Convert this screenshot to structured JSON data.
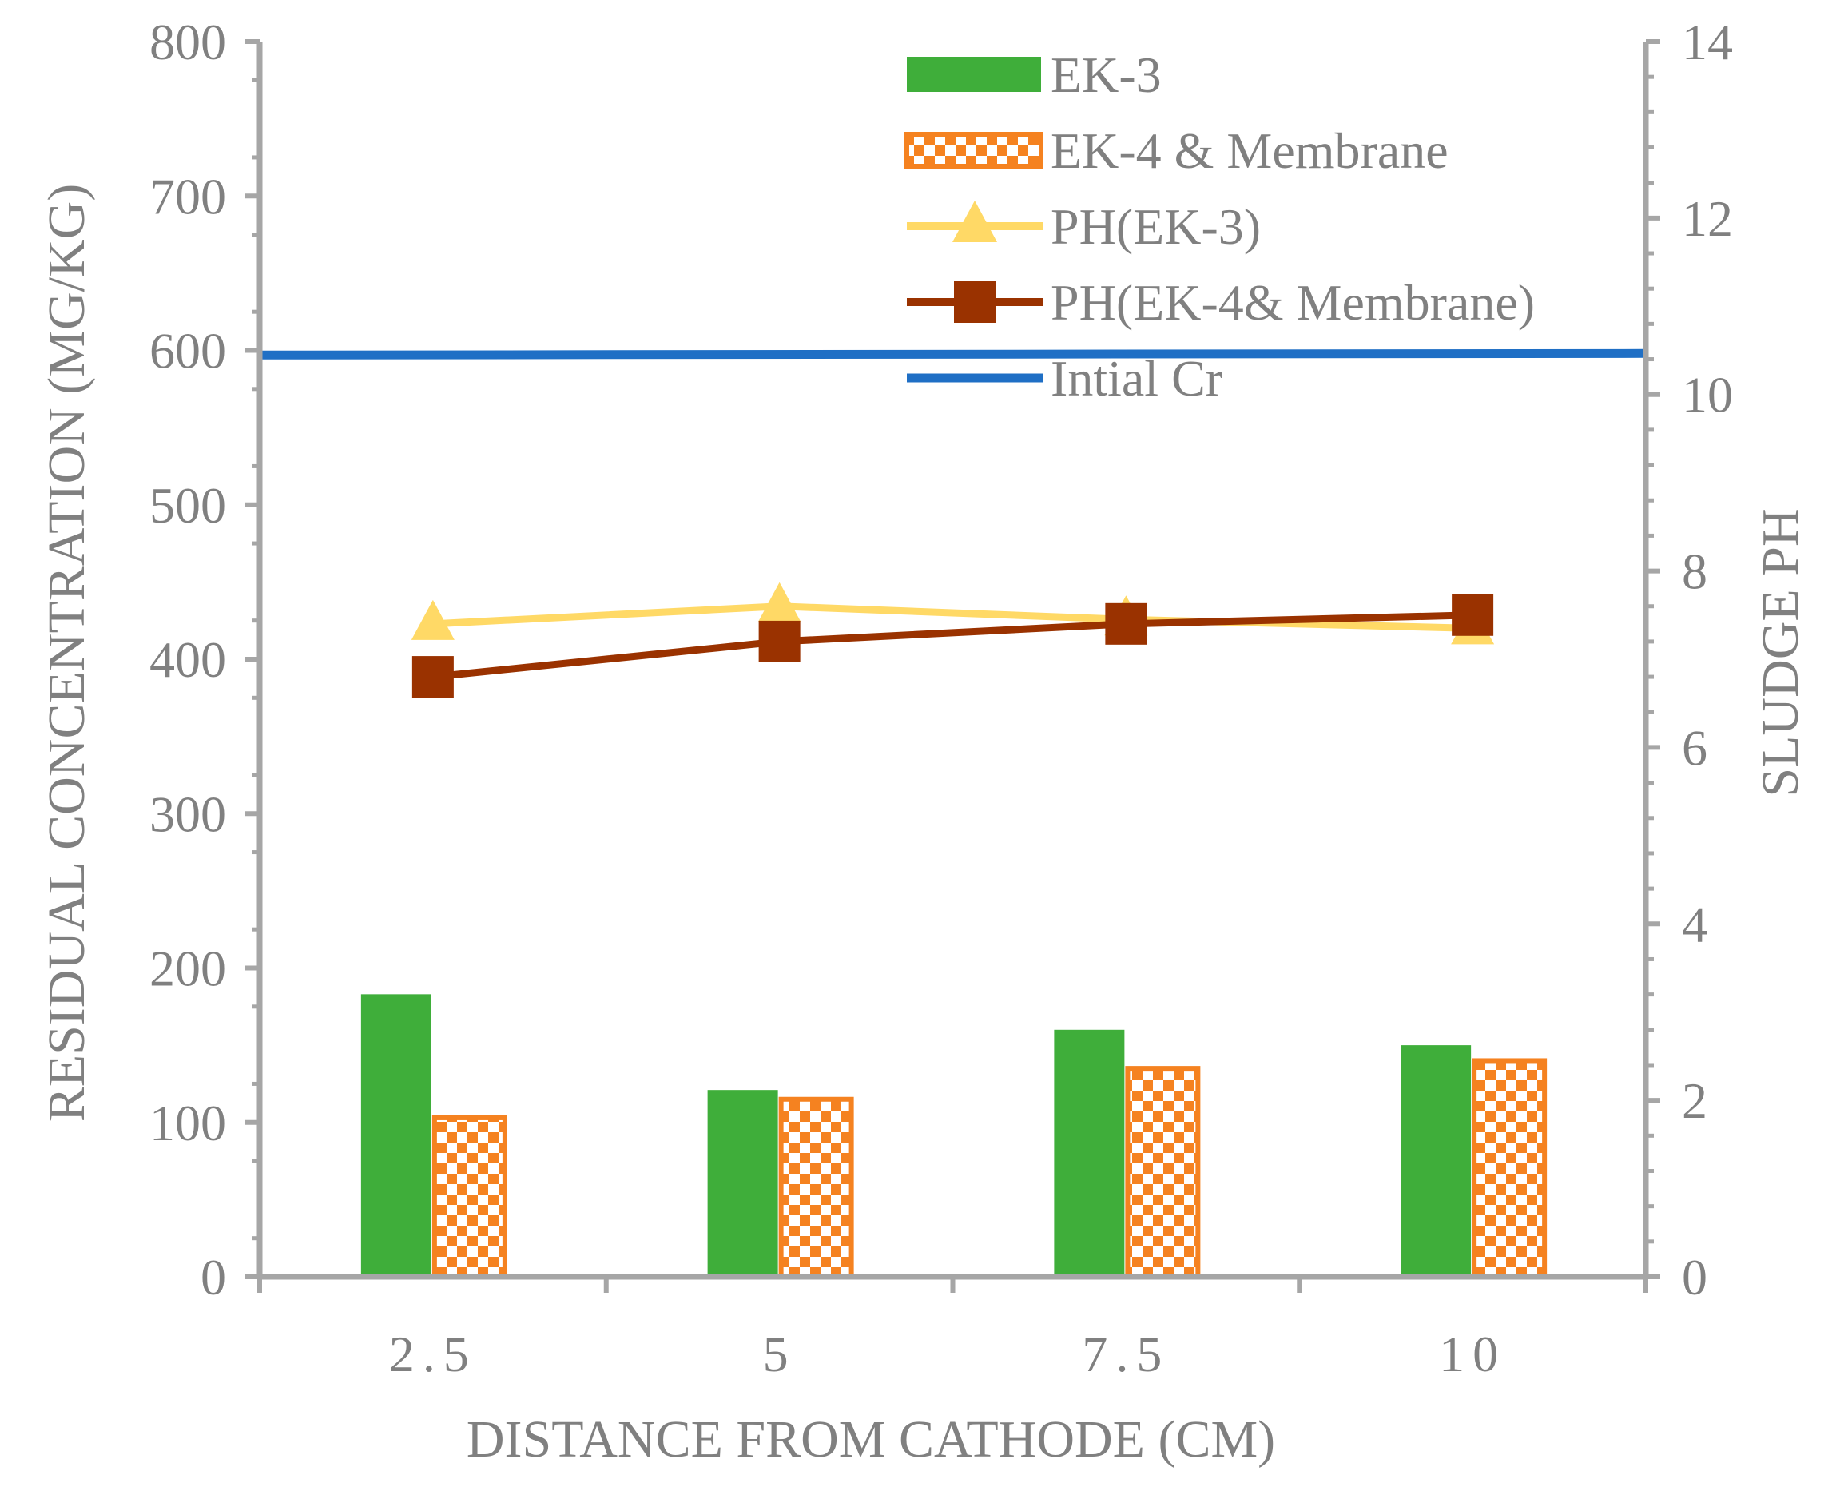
{
  "chart_data": {
    "type": "bar",
    "categories": [
      "2.5",
      "5",
      "7.5",
      "10"
    ],
    "series": [
      {
        "name": "EK-3",
        "kind": "bar",
        "axis": "left",
        "color": "#3fae3a",
        "values": [
          183,
          121,
          160,
          150
        ]
      },
      {
        "name": "EK-4 & Membrane",
        "kind": "bar",
        "axis": "left",
        "pattern": "checker",
        "color": "#f58220",
        "values": [
          103,
          115,
          135,
          140
        ]
      },
      {
        "name": "PH(EK-3)",
        "kind": "line",
        "marker": "triangle",
        "axis": "right",
        "color": "#ffd966",
        "values": [
          7.4,
          7.6,
          7.45,
          7.35
        ]
      },
      {
        "name": "PH(EK-4& Membrane)",
        "kind": "line",
        "marker": "square",
        "axis": "right",
        "color": "#9a3200",
        "values": [
          6.8,
          7.2,
          7.4,
          7.5
        ]
      },
      {
        "name": "Intial Cr",
        "kind": "hline",
        "axis": "left",
        "color": "#1f6fc5",
        "value": 597
      }
    ],
    "xlabel": "DISTANCE FROM CATHODE (CM)",
    "ylabel": "RESIDUAL CONCENTRATION (MG/KG)",
    "y2label": "SLUDGE PH",
    "ylim": [
      0,
      800
    ],
    "y2lim": [
      0,
      14
    ],
    "yticks": [
      "0",
      "100",
      "200",
      "300",
      "400",
      "500",
      "600",
      "700",
      "800"
    ],
    "y2ticks": [
      "0",
      "2",
      "4",
      "6",
      "8",
      "10",
      "12",
      "14"
    ],
    "xticklabels": [
      "2.5",
      "5",
      "7.5",
      "10"
    ],
    "legend_position": "top-center",
    "grid": false
  }
}
